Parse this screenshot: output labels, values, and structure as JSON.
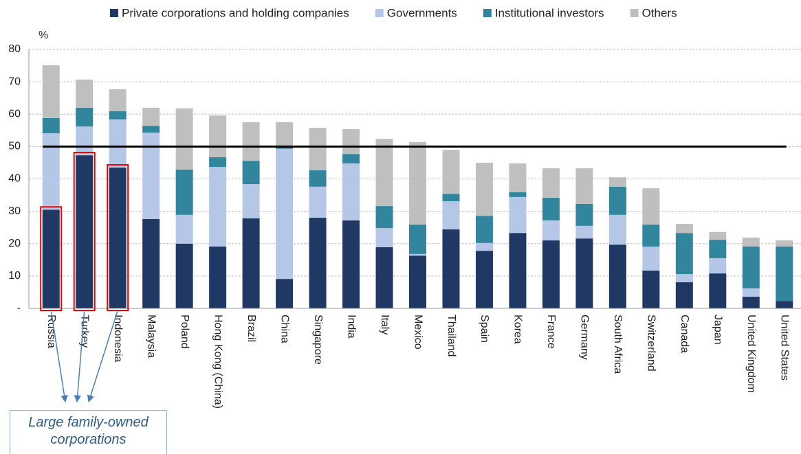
{
  "chart_data": {
    "type": "stacked_bar",
    "y_label": "%",
    "categories": [
      "Russia",
      "Turkey",
      "Indonesia",
      "Malaysia",
      "Poland",
      "Hong Kong (China)",
      "Brazil",
      "China",
      "Singapore",
      "India",
      "Italy",
      "Mexico",
      "Thailand",
      "Spain",
      "Korea",
      "France",
      "Germany",
      "South Africa",
      "Switzerland",
      "Canada",
      "Japan",
      "United Kingdom",
      "United States"
    ],
    "series": [
      {
        "name": "Private corporations and holding companies",
        "color": "#1f3864",
        "values": [
          30.5,
          47.3,
          43.5,
          27.6,
          20.0,
          19.1,
          27.8,
          9.1,
          28.0,
          27.2,
          18.9,
          16.3,
          24.4,
          17.8,
          23.3,
          21.0,
          21.6,
          19.7,
          11.7,
          8.1,
          10.8,
          3.6,
          2.3
        ]
      },
      {
        "name": "Governments",
        "color": "#b4c7e7",
        "values": [
          23.6,
          8.9,
          14.9,
          26.7,
          8.9,
          24.6,
          10.6,
          40.2,
          9.6,
          17.6,
          5.9,
          0.5,
          8.7,
          2.4,
          11.1,
          6.2,
          3.9,
          9.2,
          7.4,
          2.5,
          4.7,
          2.6,
          0
        ]
      },
      {
        "name": "Institutional investors",
        "color": "#31859c",
        "values": [
          4.7,
          5.8,
          2.5,
          2.1,
          14.0,
          3.0,
          7.2,
          1.0,
          5.1,
          2.9,
          6.8,
          9.1,
          2.3,
          8.4,
          1.5,
          7.0,
          6.8,
          8.7,
          6.8,
          12.7,
          5.7,
          12.9,
          16.8
        ]
      },
      {
        "name": "Others",
        "color": "#bfbfbf",
        "values": [
          16.3,
          8.7,
          6.8,
          5.6,
          18.9,
          12.9,
          11.9,
          7.2,
          13.1,
          7.7,
          20.8,
          25.5,
          13.6,
          16.4,
          8.9,
          9.1,
          11.0,
          2.9,
          11.2,
          2.8,
          2.4,
          2.8,
          1.9
        ]
      }
    ],
    "ylim": [
      0,
      80
    ],
    "yticks": [
      {
        "value": 0,
        "label": "-"
      },
      10,
      20,
      30,
      40,
      50,
      60,
      70,
      80
    ],
    "grid": true,
    "reference_line": 50,
    "annotation": "Large family-owned corporations"
  }
}
